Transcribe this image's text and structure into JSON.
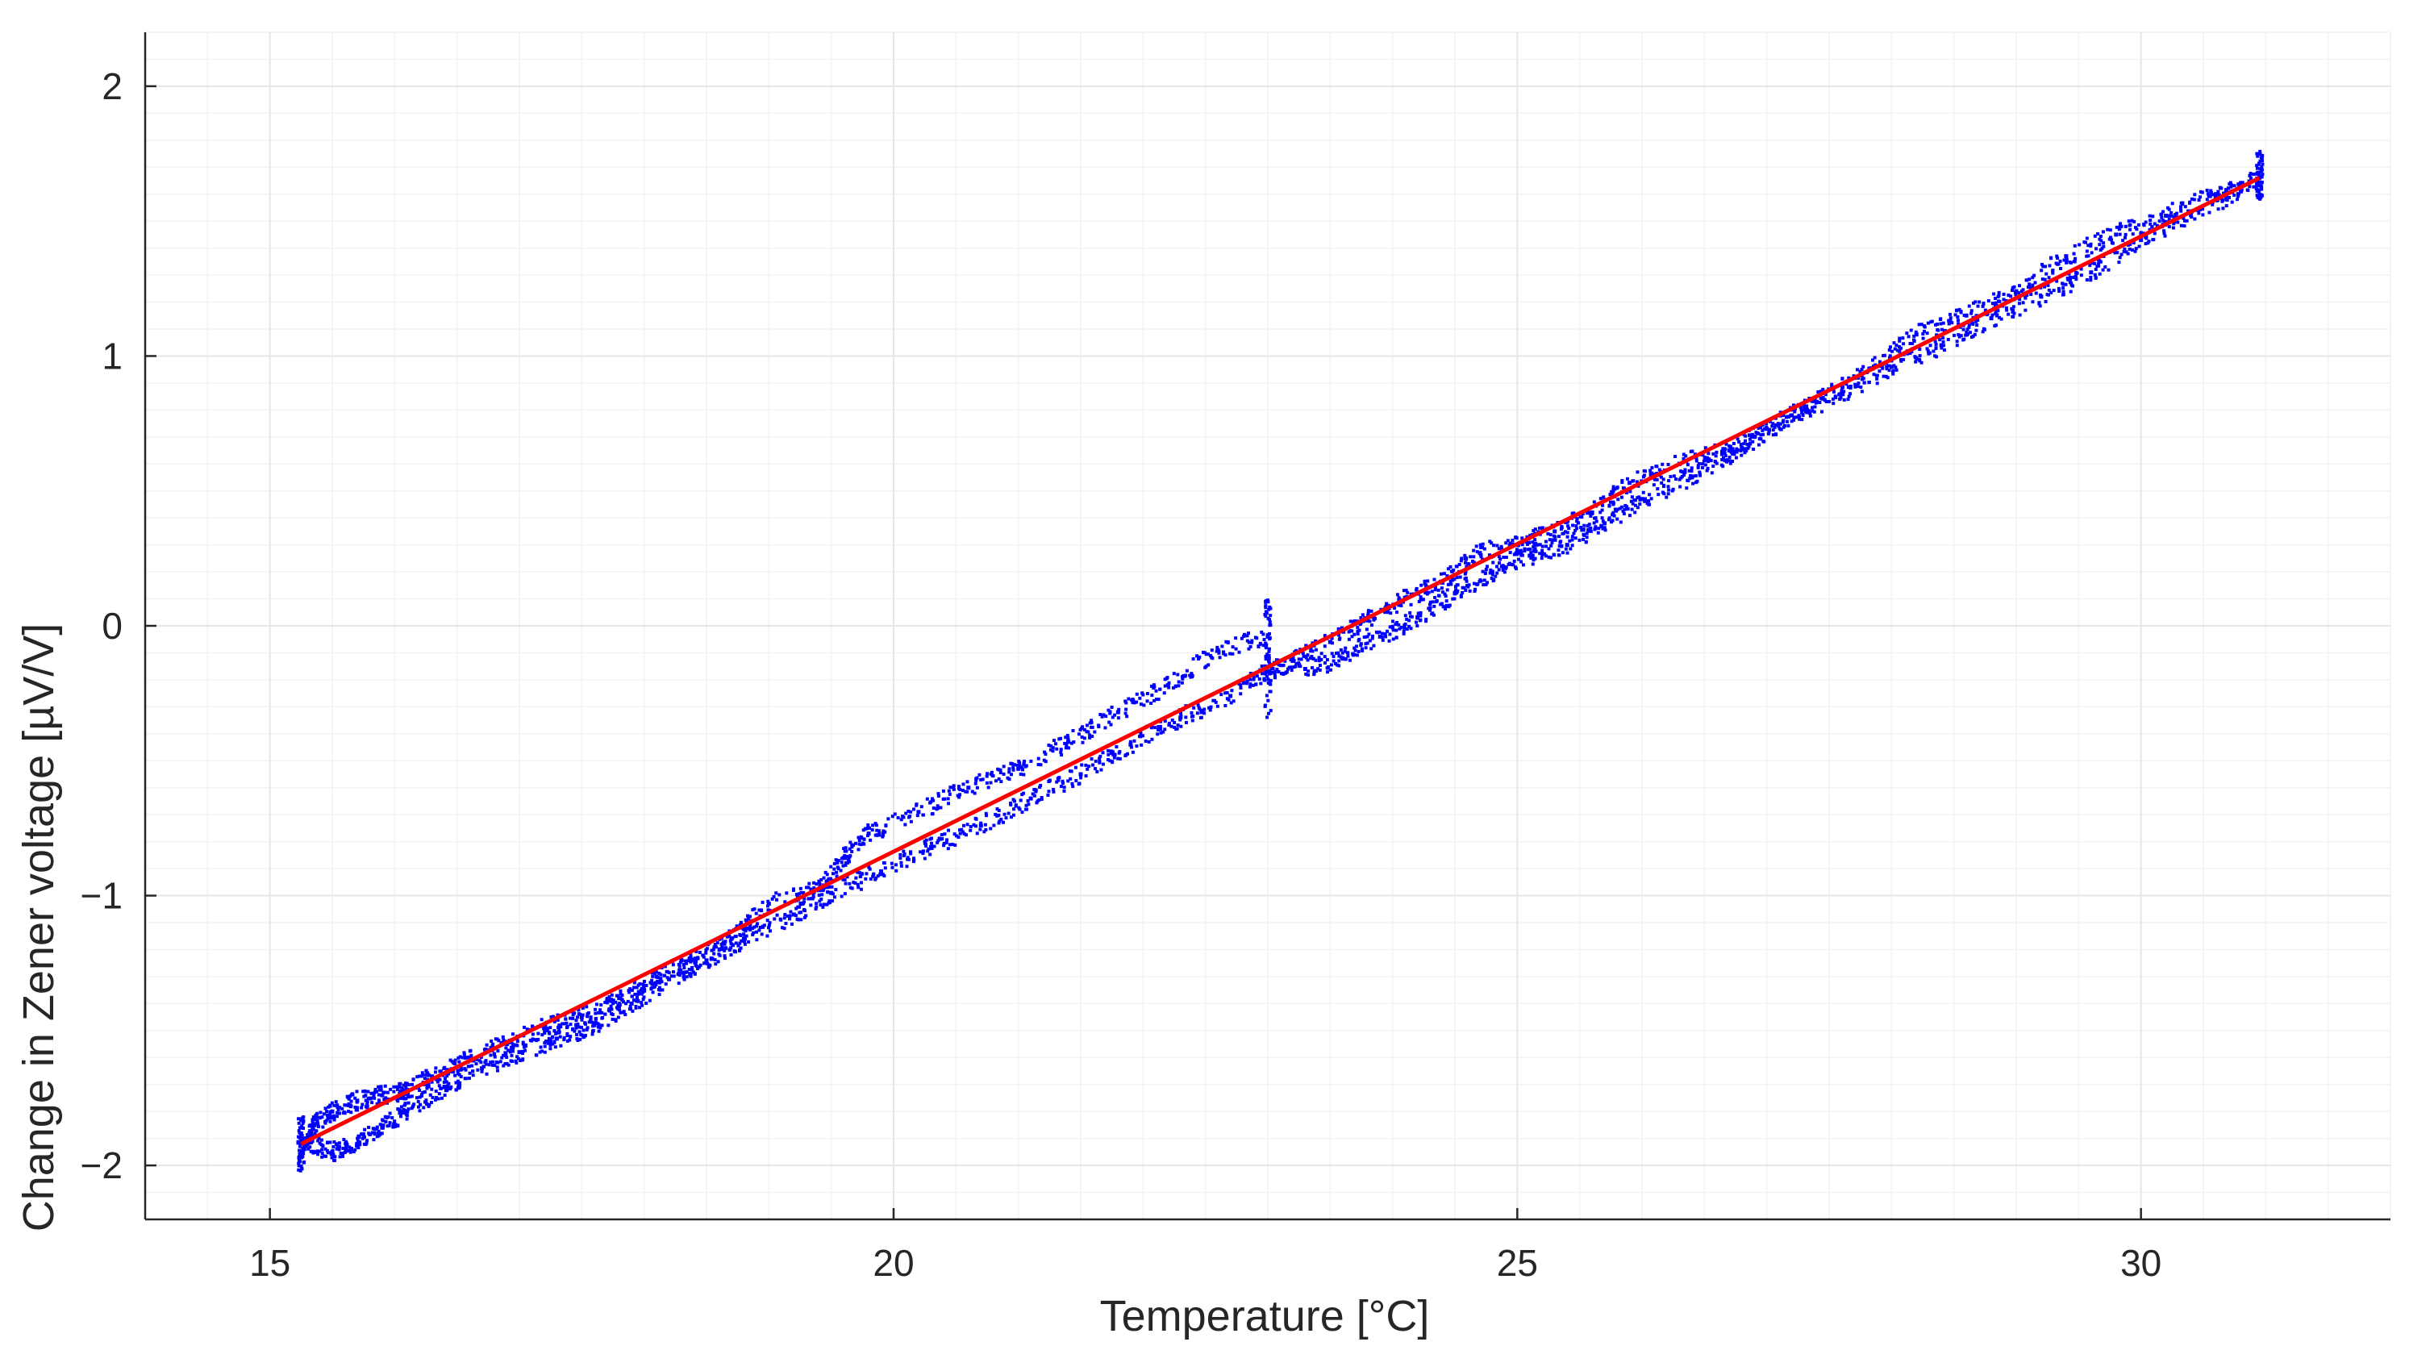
{
  "chart_data": {
    "type": "scatter",
    "xlabel": "Temperature [°C]",
    "ylabel": "Change in Zener voltage [µV/V]",
    "xlim": [
      14,
      32
    ],
    "ylim": [
      -2.2,
      2.2
    ],
    "x_ticks": [
      15,
      20,
      25,
      30
    ],
    "y_ticks": [
      -2,
      -1,
      0,
      1,
      2
    ],
    "x_tick_labels": [
      "15",
      "20",
      "25",
      "30"
    ],
    "y_tick_labels": [
      "−2",
      "−1",
      "0",
      "1",
      "2"
    ],
    "grid": true,
    "minor_grid": true,
    "colors": {
      "scatter": "#0000ff",
      "fit": "#ff0000",
      "axis": "#262626",
      "grid": "#e6e6e6",
      "minor_grid": "#f2f2f2"
    },
    "series": [
      {
        "kind": "scatter",
        "points": [
          [
            15.25,
            -1.95
          ],
          [
            15.35,
            -1.85
          ],
          [
            15.5,
            -1.8
          ],
          [
            15.7,
            -1.76
          ],
          [
            15.9,
            -1.74
          ],
          [
            16.1,
            -1.72
          ],
          [
            16.3,
            -1.67
          ],
          [
            16.6,
            -1.6
          ],
          [
            16.9,
            -1.55
          ],
          [
            17.2,
            -1.49
          ],
          [
            17.5,
            -1.45
          ],
          [
            17.8,
            -1.38
          ],
          [
            18.1,
            -1.3
          ],
          [
            18.4,
            -1.24
          ],
          [
            18.7,
            -1.16
          ],
          [
            19.0,
            -1.03
          ],
          [
            19.4,
            -0.98
          ],
          [
            19.6,
            -0.86
          ],
          [
            19.8,
            -0.77
          ],
          [
            20.2,
            -0.69
          ],
          [
            20.6,
            -0.6
          ],
          [
            21.0,
            -0.53
          ],
          [
            21.4,
            -0.43
          ],
          [
            21.8,
            -0.32
          ],
          [
            22.2,
            -0.22
          ],
          [
            22.6,
            -0.09
          ],
          [
            23.0,
            -0.04
          ],
          [
            15.3,
            -1.92
          ],
          [
            15.5,
            -1.95
          ],
          [
            15.7,
            -1.92
          ],
          [
            15.9,
            -1.86
          ],
          [
            16.1,
            -1.8
          ],
          [
            16.4,
            -1.71
          ],
          [
            16.7,
            -1.64
          ],
          [
            17.0,
            -1.58
          ],
          [
            17.3,
            -1.53
          ],
          [
            17.6,
            -1.48
          ],
          [
            17.9,
            -1.4
          ],
          [
            18.2,
            -1.31
          ],
          [
            18.5,
            -1.24
          ],
          [
            18.8,
            -1.16
          ],
          [
            19.2,
            -1.07
          ],
          [
            19.5,
            -0.99
          ],
          [
            19.9,
            -0.91
          ],
          [
            20.3,
            -0.82
          ],
          [
            20.7,
            -0.74
          ],
          [
            21.1,
            -0.64
          ],
          [
            21.5,
            -0.55
          ],
          [
            21.9,
            -0.44
          ],
          [
            22.3,
            -0.34
          ],
          [
            22.7,
            -0.26
          ],
          [
            23.0,
            -0.17
          ],
          [
            23.2,
            -0.13
          ],
          [
            23.5,
            -0.06
          ],
          [
            23.8,
            0.02
          ],
          [
            24.1,
            0.1
          ],
          [
            24.4,
            0.16
          ],
          [
            24.7,
            0.27
          ],
          [
            25.0,
            0.3
          ],
          [
            25.3,
            0.35
          ],
          [
            25.6,
            0.42
          ],
          [
            25.9,
            0.53
          ],
          [
            26.3,
            0.6
          ],
          [
            26.7,
            0.65
          ],
          [
            27.0,
            0.73
          ],
          [
            27.4,
            0.83
          ],
          [
            27.8,
            0.94
          ],
          [
            28.2,
            1.08
          ],
          [
            28.6,
            1.15
          ],
          [
            29.0,
            1.24
          ],
          [
            29.4,
            1.37
          ],
          [
            29.8,
            1.45
          ],
          [
            30.2,
            1.52
          ],
          [
            30.6,
            1.6
          ],
          [
            30.95,
            1.66
          ],
          [
            23.3,
            -0.16
          ],
          [
            23.6,
            -0.12
          ],
          [
            23.9,
            -0.04
          ],
          [
            24.2,
            0.03
          ],
          [
            24.5,
            0.12
          ],
          [
            24.8,
            0.2
          ],
          [
            25.1,
            0.26
          ],
          [
            25.4,
            0.3
          ],
          [
            25.7,
            0.38
          ],
          [
            26.0,
            0.47
          ],
          [
            26.4,
            0.55
          ],
          [
            26.8,
            0.66
          ],
          [
            27.2,
            0.78
          ],
          [
            27.6,
            0.86
          ],
          [
            28.0,
            0.96
          ],
          [
            28.4,
            1.04
          ],
          [
            28.8,
            1.14
          ],
          [
            29.2,
            1.22
          ],
          [
            29.6,
            1.31
          ],
          [
            30.0,
            1.43
          ],
          [
            30.4,
            1.53
          ],
          [
            30.8,
            1.61
          ]
        ]
      },
      {
        "kind": "line",
        "x": [
          15.25,
          30.95
        ],
        "y": [
          -1.92,
          1.66
        ]
      }
    ]
  }
}
